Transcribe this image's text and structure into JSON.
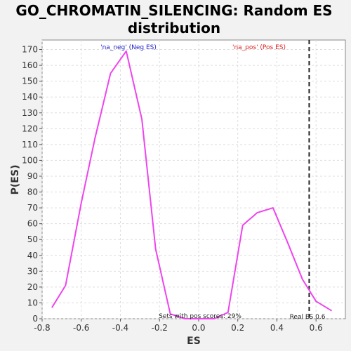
{
  "chart_data": {
    "type": "line",
    "title_line1": "GO_CHROMATIN_SILENCING: Random ES",
    "title_line2": "distribution",
    "xlabel": "ES",
    "ylabel": "P(ES)",
    "xlim": [
      -0.8,
      0.75
    ],
    "ylim": [
      0,
      176
    ],
    "x_ticks": [
      -0.8,
      -0.6,
      -0.4,
      -0.2,
      0.0,
      0.2,
      0.4,
      0.6
    ],
    "x_tick_labels": [
      "-0.8",
      "-0.6",
      "-0.4",
      "-0.2",
      "0.0",
      "0.2",
      "0.4",
      "0.6"
    ],
    "y_ticks": [
      0,
      10,
      20,
      30,
      40,
      50,
      60,
      70,
      80,
      90,
      100,
      110,
      120,
      130,
      140,
      150,
      160,
      170
    ],
    "grid": true,
    "series": [
      {
        "color": "#ee44ee",
        "x": [
          -0.75,
          -0.68,
          -0.6,
          -0.53,
          -0.45,
          -0.37,
          -0.29,
          -0.22,
          -0.145,
          -0.07,
          0.0,
          0.08,
          0.15,
          0.225,
          0.3,
          0.38,
          0.455,
          0.53,
          0.6,
          0.68
        ],
        "y": [
          7,
          21,
          73,
          114,
          155,
          169,
          126,
          44,
          3,
          0,
          0,
          0,
          4,
          59,
          67,
          70,
          48,
          25,
          11,
          5
        ]
      }
    ],
    "real_es": 0.565,
    "annotations": {
      "neg_label": "'na_neg' (Neg ES)",
      "neg_color": "#2222cc",
      "pos_label": "'na_pos' (Pos ES)",
      "pos_color": "#dd2222",
      "sets_note": "Sets with pos scores: 29%",
      "real_es_label": "Real ES 0.6"
    }
  }
}
